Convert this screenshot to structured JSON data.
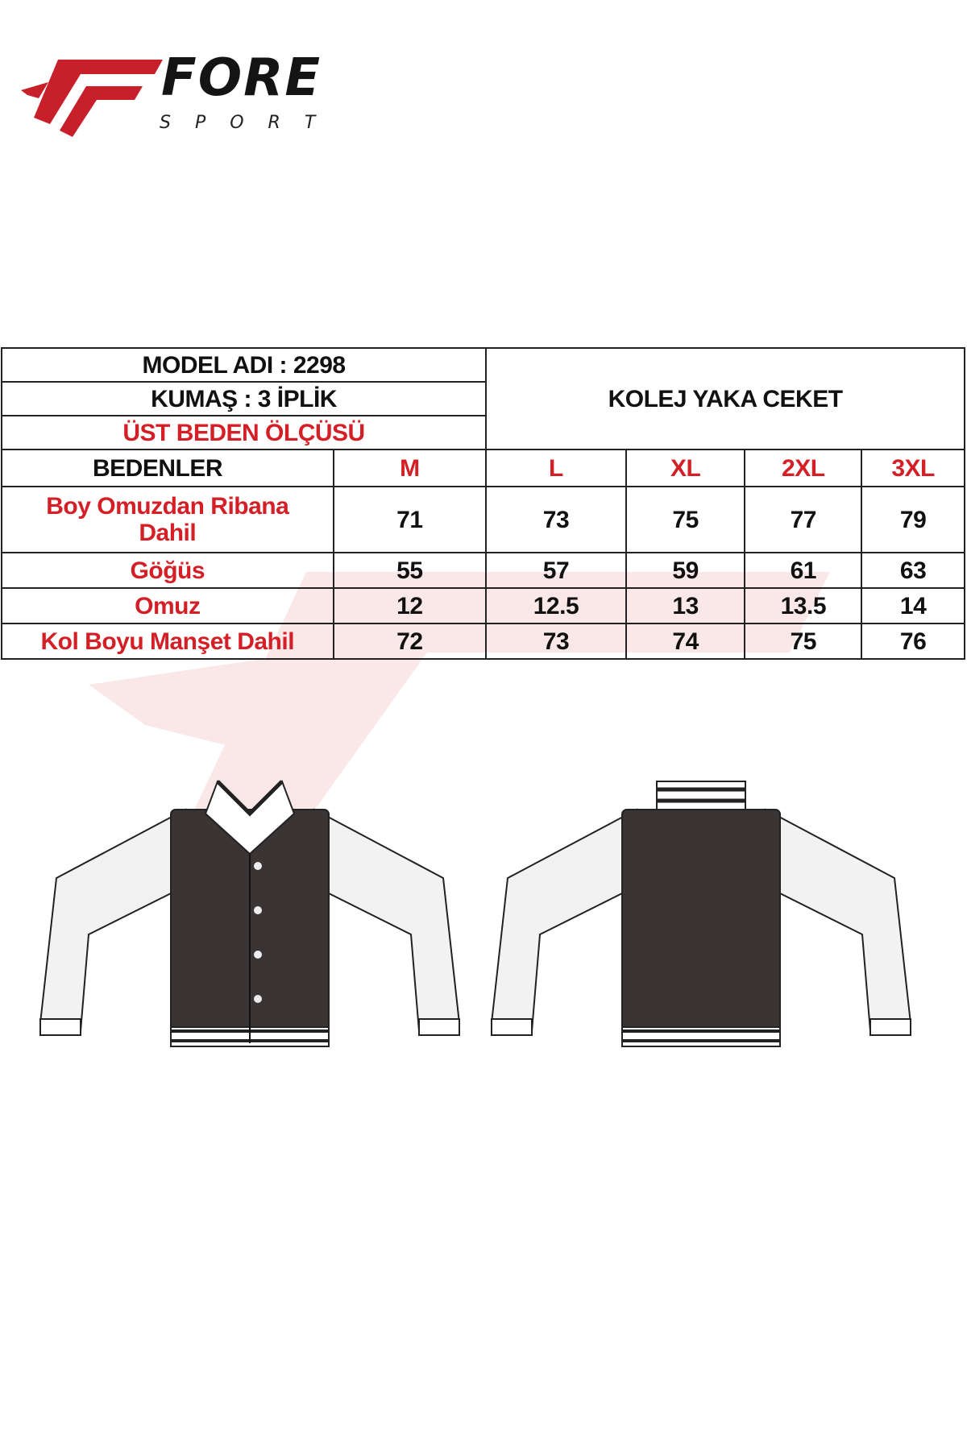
{
  "brand": {
    "name": "FORE",
    "sub": "SPORT",
    "accent": "#d41f26"
  },
  "table": {
    "model": "MODEL ADI : 2298",
    "fabric": "KUMAŞ : 3 İPLİK",
    "section": "ÜST BEDEN ÖLÇÜSÜ",
    "product": "KOLEJ YAKA CEKET",
    "size_header": "BEDENLER",
    "sizes": [
      "M",
      "L",
      "XL",
      "2XL",
      "3XL"
    ],
    "rows": [
      {
        "label": "Boy Omuzdan Ribana Dahil",
        "values": [
          "71",
          "73",
          "75",
          "77",
          "79"
        ]
      },
      {
        "label": "Göğüs",
        "values": [
          "55",
          "57",
          "59",
          "61",
          "63"
        ]
      },
      {
        "label": "Omuz",
        "values": [
          "12",
          "12.5",
          "13",
          "13.5",
          "14"
        ]
      },
      {
        "label": "Kol Boyu Manşet Dahil",
        "values": [
          "72",
          "73",
          "74",
          "75",
          "76"
        ]
      }
    ]
  }
}
